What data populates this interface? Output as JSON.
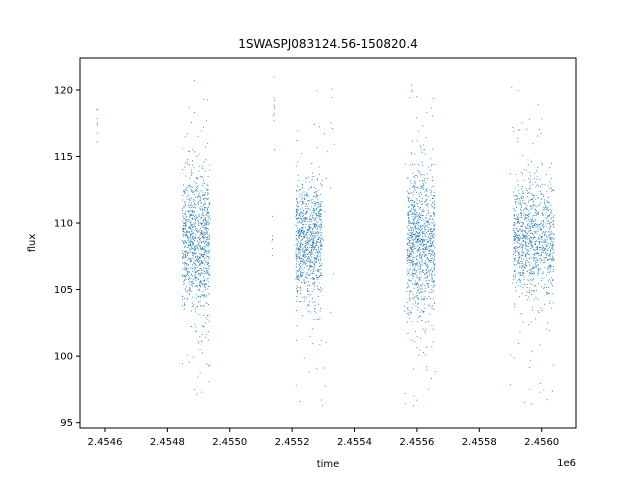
{
  "chart_data": {
    "type": "scatter",
    "title": "1SWASPJ083124.56-150820.4",
    "xlabel": "time",
    "ylabel": "flux",
    "x_offset_label": "1e6",
    "xlim": [
      2454520,
      2456110
    ],
    "ylim": [
      94.6,
      122.4
    ],
    "x_ticks": [
      2454600,
      2454800,
      2455000,
      2455200,
      2455400,
      2455600,
      2455800,
      2456000
    ],
    "x_tick_labels": [
      "2.4546",
      "2.4548",
      "2.4550",
      "2.4552",
      "2.4554",
      "2.4556",
      "2.4558",
      "2.4560"
    ],
    "y_ticks": [
      95,
      100,
      105,
      110,
      115,
      120
    ],
    "y_tick_labels": [
      "95",
      "100",
      "105",
      "110",
      "115",
      "120"
    ],
    "grid": false,
    "marker_color": "#1f77b4",
    "clusters": [
      {
        "x_range": [
          2454574,
          2454576
        ],
        "y_center": 118.0,
        "spread": 1.2,
        "n": 8
      },
      {
        "x_range": [
          2454848,
          2454936
        ],
        "y_center": 108.5,
        "spread": 2.6,
        "n": 900
      },
      {
        "x_range": [
          2455140,
          2455144
        ],
        "y_center": 118.5,
        "spread": 1.5,
        "n": 10
      },
      {
        "x_range": [
          2455135,
          2455138
        ],
        "y_center": 109.0,
        "spread": 1.5,
        "n": 6
      },
      {
        "x_range": [
          2455212,
          2455296
        ],
        "y_center": 108.5,
        "spread": 2.2,
        "n": 850
      },
      {
        "x_range": [
          2455568,
          2455658
        ],
        "y_center": 108.5,
        "spread": 2.8,
        "n": 950
      },
      {
        "x_range": [
          2455910,
          2456040
        ],
        "y_center": 108.7,
        "spread": 2.2,
        "n": 950
      }
    ],
    "outlier_clusters": [
      {
        "x_range": [
          2454860,
          2454940
        ],
        "y_range": [
          95.8,
          121.0
        ],
        "n": 70
      },
      {
        "x_range": [
          2455212,
          2455340
        ],
        "y_range": [
          96.0,
          121.0
        ],
        "n": 60
      },
      {
        "x_range": [
          2455560,
          2455660
        ],
        "y_range": [
          96.0,
          121.0
        ],
        "n": 60
      },
      {
        "x_range": [
          2455900,
          2456040
        ],
        "y_range": [
          96.0,
          121.0
        ],
        "n": 70
      }
    ]
  }
}
